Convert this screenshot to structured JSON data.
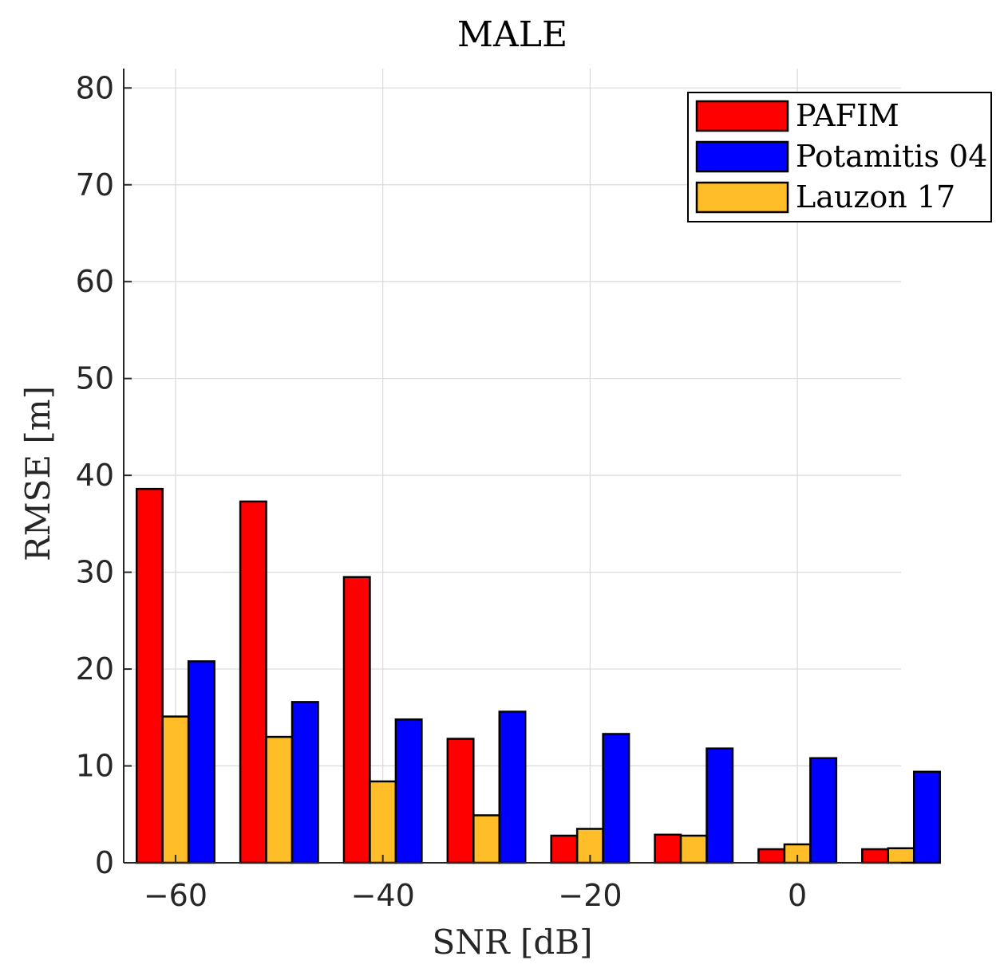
{
  "chart_data": {
    "type": "bar",
    "title": "MALE",
    "xlabel": "SNR [dB]",
    "ylabel": "RMSE [m]",
    "ylim": [
      0,
      82
    ],
    "xlim": [
      -65,
      10
    ],
    "xticks": [
      -60,
      -40,
      -20,
      0
    ],
    "xtick_labels": [
      "−60",
      "−40",
      "−20",
      "0"
    ],
    "yticks": [
      0,
      10,
      20,
      30,
      40,
      50,
      60,
      70,
      80
    ],
    "ytick_labels": [
      "0",
      "10",
      "20",
      "30",
      "40",
      "50",
      "60",
      "70",
      "80"
    ],
    "grid": true,
    "legend_location": "top-right",
    "x": [
      -60,
      -50,
      -40,
      -30,
      -20,
      -10,
      0,
      10
    ],
    "series": [
      {
        "name": "PAFIM",
        "color": "#ff0000",
        "values": [
          38.6,
          37.3,
          29.5,
          12.8,
          2.8,
          2.9,
          1.4,
          1.4
        ]
      },
      {
        "name": "Lauzon 17",
        "color": "#ffbe28",
        "values": [
          15.1,
          13.0,
          8.4,
          4.9,
          3.5,
          2.8,
          1.9,
          1.5
        ]
      },
      {
        "name": "Potamitis 04",
        "color": "#0000ff",
        "values": [
          20.8,
          16.6,
          14.8,
          15.6,
          13.3,
          11.8,
          10.8,
          9.4
        ]
      }
    ],
    "legend_order": [
      "PAFIM",
      "Potamitis 04",
      "Lauzon 17"
    ]
  }
}
